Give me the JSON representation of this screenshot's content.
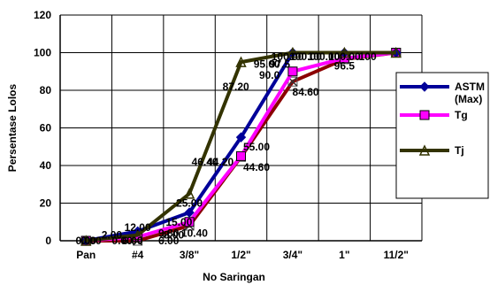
{
  "chart_data": {
    "type": "line",
    "title": "",
    "xlabel": "No Saringan",
    "ylabel": "Persentase Lolos",
    "categories": [
      "Pan",
      "#4",
      "3/8\"",
      "1/2\"",
      "3/4\"",
      "1\"",
      "11/2\""
    ],
    "ylim": [
      0,
      120
    ],
    "yticks": [
      0,
      20,
      40,
      60,
      80,
      100,
      120
    ],
    "grid": true,
    "legend_position": "right",
    "series": [
      {
        "name": "ASTM (Max)",
        "name_lines": [
          "ASTM",
          "(Max)"
        ],
        "color": "#000099",
        "marker": "diamond",
        "values": [
          0,
          5,
          15,
          55,
          100,
          100,
          100
        ]
      },
      {
        "name": "Tg",
        "name_lines": [
          "Tg"
        ],
        "color": "#ff00ff",
        "marker": "square",
        "values": [
          0,
          2,
          10,
          45,
          90,
          97,
          100
        ]
      },
      {
        "name": "Tj",
        "name_lines": [
          "Tj"
        ],
        "color": "#333300",
        "marker": "triangle",
        "values": [
          0,
          3,
          25,
          95,
          100,
          100,
          100
        ]
      },
      {
        "name": "",
        "color": "#8b0000",
        "marker": "x",
        "values": [
          0,
          0,
          8,
          44.6,
          84.6,
          96.5,
          100
        ]
      }
    ],
    "data_labels": [
      {
        "text": "0.00",
        "x": 0,
        "y": 0
      },
      {
        "text": "0.00",
        "x": 0.1,
        "y": 0
      },
      {
        "text": "0.00",
        "x": 0.7,
        "y": 0
      },
      {
        "text": "2.00",
        "x": 0.5,
        "y": 3
      },
      {
        "text": "6.00",
        "x": 0.9,
        "y": 0
      },
      {
        "text": "12.00",
        "x": 1.0,
        "y": 7
      },
      {
        "text": "8.00",
        "x": 1.7,
        "y": 3
      },
      {
        "text": "6.00",
        "x": 1.6,
        "y": 0
      },
      {
        "text": "25.00",
        "x": 2.0,
        "y": 20
      },
      {
        "text": "15.00",
        "x": 1.8,
        "y": 10
      },
      {
        "text": "9.80",
        "x": 1.6,
        "y": 4
      },
      {
        "text": "10.40",
        "x": 2.1,
        "y": 4
      },
      {
        "text": "46.40",
        "x": 2.3,
        "y": 42
      },
      {
        "text": "44.20",
        "x": 2.6,
        "y": 42
      },
      {
        "text": "55.00",
        "x": 3.3,
        "y": 50
      },
      {
        "text": "44.60",
        "x": 3.3,
        "y": 39
      },
      {
        "text": "87.20",
        "x": 2.9,
        "y": 82
      },
      {
        "text": "95.00",
        "x": 3.5,
        "y": 94
      },
      {
        "text": "97.5",
        "x": 3.75,
        "y": 94
      },
      {
        "text": "90.0",
        "x": 3.55,
        "y": 88
      },
      {
        "text": "84.60",
        "x": 4.25,
        "y": 79
      },
      {
        "text": "100.00",
        "x": 3.9,
        "y": 98
      },
      {
        "text": "100.00",
        "x": 4.25,
        "y": 98
      },
      {
        "text": "100.00",
        "x": 4.6,
        "y": 98
      },
      {
        "text": "100.00",
        "x": 5.0,
        "y": 98
      },
      {
        "text": "100",
        "x": 5.45,
        "y": 98
      },
      {
        "text": "96.5",
        "x": 5.0,
        "y": 93
      }
    ]
  }
}
